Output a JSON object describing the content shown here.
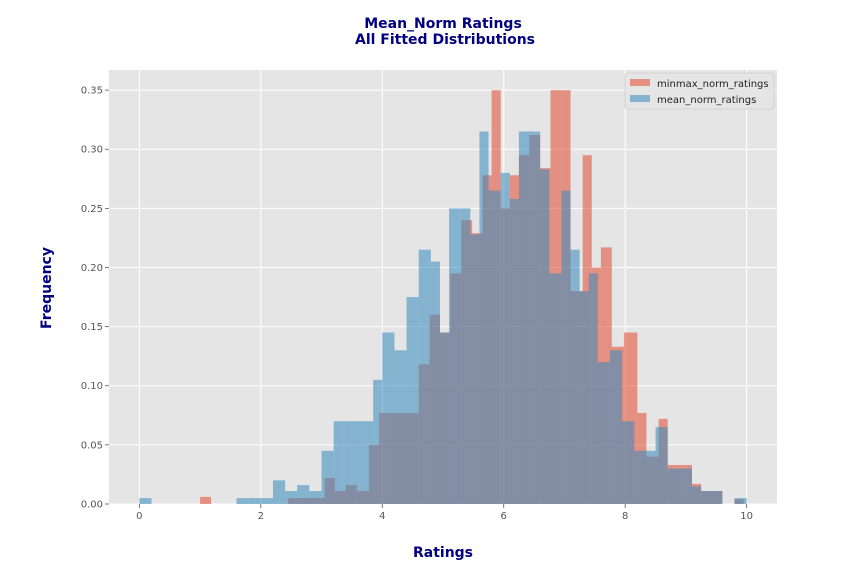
{
  "chart_data": {
    "type": "bar",
    "title": [
      "Mean_Norm Ratings",
      "All Fitted Distributions"
    ],
    "xlabel": "Ratings",
    "ylabel": "Frequency",
    "xlim": [
      -0.5,
      10.5
    ],
    "ylim": [
      0,
      0.367
    ],
    "xticks": [
      0,
      2,
      4,
      6,
      8,
      10
    ],
    "yticks": [
      0.0,
      0.05,
      0.1,
      0.15,
      0.2,
      0.25,
      0.3,
      0.35
    ],
    "xtick_labels": [
      "0",
      "2",
      "4",
      "6",
      "8",
      "10"
    ],
    "ytick_labels": [
      "0.00",
      "0.05",
      "0.10",
      "0.15",
      "0.20",
      "0.25",
      "0.30",
      "0.35"
    ],
    "grid": true,
    "legend_position": "top-right",
    "colors": {
      "background": "#e5e5e5",
      "grid": "#ffffff",
      "minmax": "#e24a33",
      "mean": "#348abd",
      "title": "#000080"
    },
    "series": [
      {
        "name": "minmax_norm_ratings",
        "color": "#e24a33",
        "opacity": 0.55,
        "bin_edges": [
          1.0,
          1.18,
          2.45,
          2.65,
          2.85,
          3.05,
          3.22,
          3.4,
          3.58,
          3.78,
          3.95,
          4.1,
          4.3,
          4.6,
          4.78,
          4.95,
          5.12,
          5.3,
          5.48,
          5.65,
          5.8,
          5.95,
          6.1,
          6.25,
          6.42,
          6.6,
          6.77,
          6.95,
          7.1,
          7.3,
          7.45,
          7.6,
          7.78,
          7.98,
          8.2,
          8.35,
          8.55,
          8.7,
          8.95,
          9.1,
          9.25,
          9.6,
          9.65
        ],
        "values": [
          0.006,
          0.0,
          0.005,
          0.005,
          0.005,
          0.022,
          0.011,
          0.016,
          0.011,
          0.05,
          0.077,
          0.077,
          0.077,
          0.118,
          0.16,
          0.145,
          0.195,
          0.24,
          0.229,
          0.278,
          0.35,
          0.25,
          0.278,
          0.295,
          0.312,
          0.284,
          0.35,
          0.35,
          0.18,
          0.295,
          0.2,
          0.217,
          0.133,
          0.145,
          0.077,
          0.04,
          0.072,
          0.033,
          0.033,
          0.017,
          0.011,
          0.0
        ],
        "extra_bars": [
          {
            "x0": 9.8,
            "x1": 9.95,
            "value": 0.004
          }
        ]
      },
      {
        "name": "mean_norm_ratings",
        "color": "#348abd",
        "opacity": 0.55,
        "bin_edges": [
          0.0,
          0.2,
          1.6,
          1.8,
          2.0,
          2.2,
          2.4,
          2.6,
          2.8,
          3.0,
          3.2,
          3.35,
          3.5,
          3.7,
          3.85,
          4.0,
          4.2,
          4.4,
          4.6,
          4.8,
          4.95,
          5.1,
          5.3,
          5.45,
          5.6,
          5.75,
          5.95,
          6.1,
          6.25,
          6.4,
          6.6,
          6.75,
          6.95,
          7.1,
          7.25,
          7.4,
          7.55,
          7.75,
          7.95,
          8.15,
          8.3,
          8.5,
          8.7,
          8.95,
          9.1,
          9.25,
          9.6,
          9.8,
          10.0
        ],
        "values": [
          0.005,
          0.0,
          0.005,
          0.005,
          0.005,
          0.02,
          0.011,
          0.016,
          0.011,
          0.045,
          0.07,
          0.07,
          0.07,
          0.07,
          0.105,
          0.145,
          0.13,
          0.175,
          0.215,
          0.205,
          0.145,
          0.25,
          0.25,
          0.228,
          0.315,
          0.265,
          0.28,
          0.258,
          0.315,
          0.315,
          0.283,
          0.195,
          0.265,
          0.215,
          0.18,
          0.195,
          0.12,
          0.13,
          0.07,
          0.045,
          0.045,
          0.065,
          0.03,
          0.03,
          0.015,
          0.011,
          0.0,
          0.005
        ]
      }
    ]
  }
}
